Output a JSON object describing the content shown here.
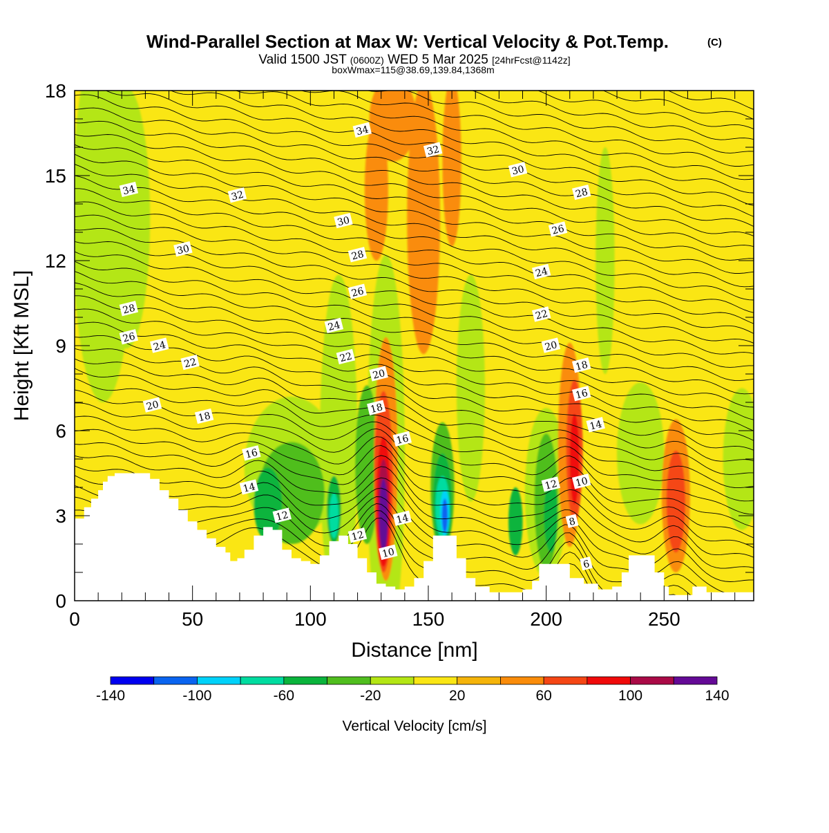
{
  "figure": {
    "title": "Wind-Parallel Section at Max W: Vertical Velocity & Pot.Temp.",
    "copyright": "(C)",
    "subtitle_valid": "Valid 1500 JST",
    "subtitle_utc": "(0600Z)",
    "subtitle_date": "WED 5 Mar 2025",
    "subtitle_fcst": "[24hrFcst@1142z]",
    "subtitle_box": "boxWmax=115@38.69,139.84,1368m"
  },
  "chart_data": {
    "type": "heatmap",
    "xlabel": "Distance [nm]",
    "ylabel": "Height [Kft MSL]",
    "xlim": [
      0,
      288
    ],
    "ylim": [
      0,
      18
    ],
    "x_ticks": [
      0,
      50,
      100,
      150,
      200,
      250
    ],
    "x_tick_labels": [
      "0",
      "50",
      "100",
      "150",
      "200",
      "250"
    ],
    "y_ticks": [
      0,
      3,
      6,
      9,
      12,
      15,
      18
    ],
    "y_tick_labels": [
      "0",
      "3",
      "6",
      "9",
      "12",
      "15",
      "18"
    ],
    "colorbar": {
      "label": "Vertical Velocity [cm/s]",
      "bounds": [
        -140,
        -120,
        -100,
        -80,
        -60,
        -40,
        -20,
        0,
        20,
        40,
        60,
        80,
        100,
        120,
        140
      ],
      "colors": [
        "#0000f0",
        "#0a64f0",
        "#00d2fa",
        "#00dca0",
        "#0ab43c",
        "#50be1e",
        "#b4e614",
        "#fae614",
        "#f5b40a",
        "#fa8c0a",
        "#f54614",
        "#f00a0a",
        "#aa0a46",
        "#640a96"
      ],
      "tick_values": [
        -140,
        -100,
        -60,
        -20,
        20,
        60,
        100,
        140
      ],
      "tick_labels": [
        "-140",
        "-100",
        "-60",
        "-20",
        "20",
        "60",
        "100",
        "140"
      ]
    },
    "terrain": [
      [
        0,
        2.9
      ],
      [
        4,
        3.3
      ],
      [
        7,
        3.6
      ],
      [
        10,
        3.9
      ],
      [
        12,
        4.2
      ],
      [
        14,
        4.4
      ],
      [
        17,
        4.5
      ],
      [
        28,
        4.5
      ],
      [
        32,
        4.3
      ],
      [
        36,
        3.9
      ],
      [
        40,
        3.6
      ],
      [
        44,
        3.2
      ],
      [
        48,
        2.8
      ],
      [
        52,
        2.5
      ],
      [
        56,
        2.2
      ],
      [
        60,
        1.9
      ],
      [
        64,
        1.7
      ],
      [
        66,
        1.4
      ],
      [
        69,
        1.5
      ],
      [
        72,
        1.8
      ],
      [
        76,
        2.3
      ],
      [
        80,
        2.6
      ],
      [
        84,
        2.5
      ],
      [
        88,
        1.8
      ],
      [
        92,
        1.5
      ],
      [
        96,
        1.4
      ],
      [
        100,
        1.3
      ],
      [
        104,
        1.6
      ],
      [
        108,
        2.1
      ],
      [
        112,
        2.3
      ],
      [
        116,
        2.0
      ],
      [
        120,
        1.5
      ],
      [
        124,
        1.0
      ],
      [
        128,
        0.6
      ],
      [
        132,
        0.5
      ],
      [
        136,
        0.4
      ],
      [
        140,
        0.5
      ],
      [
        144,
        0.8
      ],
      [
        148,
        1.4
      ],
      [
        152,
        2.3
      ],
      [
        158,
        2.3
      ],
      [
        162,
        1.5
      ],
      [
        166,
        0.8
      ],
      [
        170,
        0.5
      ],
      [
        176,
        0.3
      ],
      [
        184,
        0.3
      ],
      [
        190,
        0.4
      ],
      [
        194,
        0.7
      ],
      [
        197,
        1.3
      ],
      [
        206,
        1.3
      ],
      [
        210,
        0.8
      ],
      [
        216,
        0.6
      ],
      [
        222,
        0.4
      ],
      [
        228,
        0.5
      ],
      [
        232,
        1.0
      ],
      [
        235,
        1.6
      ],
      [
        243,
        1.6
      ],
      [
        246,
        1.0
      ],
      [
        250,
        0.5
      ],
      [
        252,
        0.2
      ],
      [
        258,
        0.2
      ],
      [
        262,
        0.5
      ],
      [
        266,
        0.5
      ],
      [
        268,
        0.3
      ],
      [
        288,
        0.3
      ]
    ],
    "series": [
      {
        "shape": "ellipse",
        "value": -20,
        "x": 22,
        "y": 13.5,
        "rx": 10,
        "ry": 4.6
      },
      {
        "shape": "ellipse",
        "value": -20,
        "x": 12,
        "y": 13.5,
        "rx": 13,
        "ry": 6.5
      },
      {
        "shape": "ellipse",
        "value": -20,
        "x": 225,
        "y": 12,
        "rx": 4,
        "ry": 4
      },
      {
        "shape": "ellipse",
        "value": -20,
        "x": 283,
        "y": 5,
        "rx": 8,
        "ry": 2.5
      },
      {
        "shape": "ellipse",
        "value": -20,
        "x": 92,
        "y": 4.7,
        "rx": 20,
        "ry": 2.5
      },
      {
        "shape": "ellipse",
        "value": -20,
        "x": 112,
        "y": 5.5,
        "rx": 8,
        "ry": 6
      },
      {
        "shape": "ellipse",
        "value": -20,
        "x": 132,
        "y": 5.2,
        "rx": 8,
        "ry": 7
      },
      {
        "shape": "ellipse",
        "value": -20,
        "x": 168,
        "y": 7.5,
        "rx": 6,
        "ry": 4
      },
      {
        "shape": "ellipse",
        "value": -20,
        "x": 200,
        "y": 3.8,
        "rx": 9,
        "ry": 3
      },
      {
        "shape": "ellipse",
        "value": -20,
        "x": 240,
        "y": 5.2,
        "rx": 10,
        "ry": 2.5
      },
      {
        "shape": "ellipse",
        "value": -40,
        "x": 92,
        "y": 3.8,
        "rx": 14,
        "ry": 1.8
      },
      {
        "shape": "ellipse",
        "value": -40,
        "x": 124,
        "y": 4.8,
        "rx": 5,
        "ry": 2.8
      },
      {
        "shape": "ellipse",
        "value": -40,
        "x": 156,
        "y": 4.0,
        "rx": 5,
        "ry": 2.3
      },
      {
        "shape": "ellipse",
        "value": -40,
        "x": 200,
        "y": 3.5,
        "rx": 5,
        "ry": 2.4
      },
      {
        "shape": "ellipse",
        "value": -60,
        "x": 82,
        "y": 3.4,
        "rx": 6,
        "ry": 1.3
      },
      {
        "shape": "ellipse",
        "value": -60,
        "x": 110,
        "y": 3.2,
        "rx": 3,
        "ry": 1.2
      },
      {
        "shape": "ellipse",
        "value": -60,
        "x": 156,
        "y": 3.5,
        "rx": 4,
        "ry": 1.7
      },
      {
        "shape": "ellipse",
        "value": -60,
        "x": 202,
        "y": 3.0,
        "rx": 3,
        "ry": 1.3
      },
      {
        "shape": "ellipse",
        "value": -60,
        "x": 187,
        "y": 2.8,
        "rx": 3,
        "ry": 1.2
      },
      {
        "shape": "ellipse",
        "value": -80,
        "x": 110,
        "y": 3.0,
        "rx": 2,
        "ry": 0.8
      },
      {
        "shape": "ellipse",
        "value": -80,
        "x": 156,
        "y": 3.3,
        "rx": 3,
        "ry": 1.1
      },
      {
        "shape": "ellipse",
        "value": -100,
        "x": 157,
        "y": 3.1,
        "rx": 2,
        "ry": 0.8
      },
      {
        "shape": "ellipse",
        "value": -120,
        "x": 157,
        "y": 3.0,
        "rx": 1.2,
        "ry": 0.6
      },
      {
        "shape": "ellipse",
        "value": 40,
        "x": 135,
        "y": 17.0,
        "rx": 10,
        "ry": 1.5
      },
      {
        "shape": "ellipse",
        "value": 40,
        "x": 128,
        "y": 14.5,
        "rx": 5,
        "ry": 2.5
      },
      {
        "shape": "ellipse",
        "value": 40,
        "x": 148,
        "y": 13.5,
        "rx": 7,
        "ry": 4.8
      },
      {
        "shape": "ellipse",
        "value": 40,
        "x": 160,
        "y": 15.5,
        "rx": 4,
        "ry": 3
      },
      {
        "shape": "ellipse",
        "value": 40,
        "x": 210,
        "y": 5.5,
        "rx": 5,
        "ry": 3.6
      },
      {
        "shape": "ellipse",
        "value": 40,
        "x": 255,
        "y": 3.7,
        "rx": 6,
        "ry": 2.7
      },
      {
        "shape": "ellipse",
        "value": 40,
        "x": 132,
        "y": 5.0,
        "rx": 5,
        "ry": 4.3
      },
      {
        "shape": "ellipse",
        "value": 60,
        "x": 255,
        "y": 3.5,
        "rx": 4,
        "ry": 1.8
      },
      {
        "shape": "ellipse",
        "value": 60,
        "x": 212,
        "y": 5.3,
        "rx": 3.5,
        "ry": 2.5
      },
      {
        "shape": "ellipse",
        "value": 60,
        "x": 131,
        "y": 4.2,
        "rx": 4,
        "ry": 3.2
      },
      {
        "shape": "ellipse",
        "value": 80,
        "x": 212,
        "y": 5.0,
        "rx": 2,
        "ry": 1.6
      },
      {
        "shape": "ellipse",
        "value": 80,
        "x": 131,
        "y": 3.5,
        "rx": 3,
        "ry": 2.3
      },
      {
        "shape": "ellipse",
        "value": 100,
        "x": 131,
        "y": 3.3,
        "rx": 2.3,
        "ry": 1.7
      },
      {
        "shape": "ellipse",
        "value": 120,
        "x": 131,
        "y": 3.0,
        "rx": 1.8,
        "ry": 1.3
      },
      {
        "shape": "ellipse",
        "value": 140,
        "x": 131,
        "y": 2.9,
        "rx": 1.3,
        "ry": 1.0
      }
    ],
    "isentropes": {
      "levels_note": "potential temperature contour lines (thin black)",
      "labels": [
        {
          "text": "34",
          "x": 122,
          "y": 16.6
        },
        {
          "text": "32",
          "x": 152,
          "y": 15.9
        },
        {
          "text": "30",
          "x": 188,
          "y": 15.2
        },
        {
          "text": "28",
          "x": 215,
          "y": 14.4
        },
        {
          "text": "34",
          "x": 23,
          "y": 14.5
        },
        {
          "text": "32",
          "x": 69,
          "y": 14.3
        },
        {
          "text": "30",
          "x": 114,
          "y": 13.4
        },
        {
          "text": "26",
          "x": 205,
          "y": 13.1
        },
        {
          "text": "30",
          "x": 46,
          "y": 12.4
        },
        {
          "text": "28",
          "x": 120,
          "y": 12.2
        },
        {
          "text": "24",
          "x": 198,
          "y": 11.6
        },
        {
          "text": "26",
          "x": 120,
          "y": 10.9
        },
        {
          "text": "28",
          "x": 23,
          "y": 10.3
        },
        {
          "text": "22",
          "x": 198,
          "y": 10.1
        },
        {
          "text": "24",
          "x": 110,
          "y": 9.7
        },
        {
          "text": "26",
          "x": 23,
          "y": 9.3
        },
        {
          "text": "24",
          "x": 36,
          "y": 9.0
        },
        {
          "text": "20",
          "x": 202,
          "y": 9.0
        },
        {
          "text": "22",
          "x": 115,
          "y": 8.6
        },
        {
          "text": "22",
          "x": 49,
          "y": 8.4
        },
        {
          "text": "18",
          "x": 215,
          "y": 8.3
        },
        {
          "text": "20",
          "x": 129,
          "y": 8.0
        },
        {
          "text": "16",
          "x": 215,
          "y": 7.3
        },
        {
          "text": "20",
          "x": 33,
          "y": 6.9
        },
        {
          "text": "18",
          "x": 128,
          "y": 6.8
        },
        {
          "text": "18",
          "x": 55,
          "y": 6.5
        },
        {
          "text": "14",
          "x": 221,
          "y": 6.2
        },
        {
          "text": "16",
          "x": 139,
          "y": 5.7
        },
        {
          "text": "16",
          "x": 75,
          "y": 5.2
        },
        {
          "text": "12",
          "x": 202,
          "y": 4.1
        },
        {
          "text": "10",
          "x": 215,
          "y": 4.2
        },
        {
          "text": "14",
          "x": 74,
          "y": 4.0
        },
        {
          "text": "12",
          "x": 88,
          "y": 3.0
        },
        {
          "text": "14",
          "x": 139,
          "y": 2.9
        },
        {
          "text": "8",
          "x": 211,
          "y": 2.8
        },
        {
          "text": "12",
          "x": 120,
          "y": 2.3
        },
        {
          "text": "10",
          "x": 133,
          "y": 1.7
        },
        {
          "text": "6",
          "x": 217,
          "y": 1.3
        }
      ]
    }
  }
}
